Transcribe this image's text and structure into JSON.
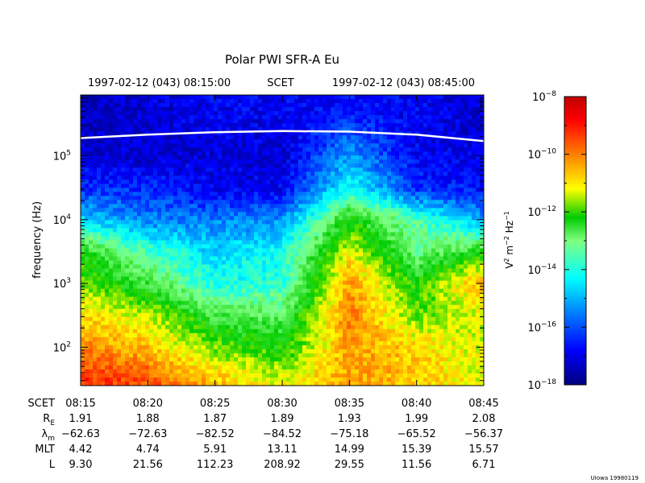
{
  "chart_data": {
    "type": "heatmap",
    "title": "Polar PWI SFR-A Eu",
    "time_axis": {
      "start_label": "1997-02-12 (043) 08:15:00",
      "mid_label": "SCET",
      "end_label": "1997-02-12 (043) 08:45:00",
      "ticks": [
        "08:15",
        "08:20",
        "08:25",
        "08:30",
        "08:35",
        "08:40",
        "08:45"
      ],
      "range_minutes": [
        0,
        30
      ]
    },
    "y_axis": {
      "label": "frequency (Hz)",
      "scale": "log",
      "range_hz": [
        25,
        900000
      ],
      "ticks": [
        {
          "base": "10",
          "exp": "2",
          "value": 100
        },
        {
          "base": "10",
          "exp": "3",
          "value": 1000
        },
        {
          "base": "10",
          "exp": "4",
          "value": 10000
        },
        {
          "base": "10",
          "exp": "5",
          "value": 100000
        }
      ]
    },
    "colorbar": {
      "label_parts": [
        "V",
        "2",
        " m",
        "−2",
        " Hz",
        "−1"
      ],
      "scale": "log",
      "range": [
        1e-18,
        1e-08
      ],
      "ticks": [
        {
          "base": "10",
          "exp": "−8",
          "value": -8
        },
        {
          "base": "10",
          "exp": "−10",
          "value": -10
        },
        {
          "base": "10",
          "exp": "−12",
          "value": -12
        },
        {
          "base": "10",
          "exp": "−14",
          "value": -14
        },
        {
          "base": "10",
          "exp": "−16",
          "value": -16
        },
        {
          "base": "10",
          "exp": "−18",
          "value": -18
        }
      ],
      "colors": [
        "#00007f",
        "#0000ff",
        "#007fff",
        "#00ffff",
        "#7fff7f",
        "#00cc00",
        "#ffff00",
        "#ff7f00",
        "#ff0000",
        "#7f0000"
      ]
    },
    "white_trace_hz": [
      [
        0,
        190000
      ],
      [
        5,
        215000
      ],
      [
        10,
        235000
      ],
      [
        15,
        245000
      ],
      [
        20,
        240000
      ],
      [
        25,
        215000
      ],
      [
        30,
        170000
      ]
    ],
    "spectral_density_log10": {
      "times_min": [
        0,
        5,
        10,
        15,
        20,
        25,
        30
      ],
      "freqs_hz": [
        30,
        100,
        300,
        1000,
        3000,
        10000,
        30000,
        100000,
        500000
      ],
      "values": [
        [
          -9.5,
          -9.8,
          -10.8,
          -11.5,
          -10.5,
          -10.8,
          -11.5
        ],
        [
          -10.3,
          -10.8,
          -12.0,
          -12.5,
          -10.5,
          -11.0,
          -11.5
        ],
        [
          -11.0,
          -11.5,
          -13.0,
          -13.2,
          -10.2,
          -12.0,
          -11.5
        ],
        [
          -12.0,
          -13.0,
          -14.5,
          -14.3,
          -10.5,
          -12.5,
          -10.6
        ],
        [
          -12.5,
          -14.0,
          -15.0,
          -14.5,
          -11.3,
          -13.5,
          -12.5
        ],
        [
          -15.0,
          -15.8,
          -15.8,
          -15.6,
          -12.5,
          -14.0,
          -15.5
        ],
        [
          -16.5,
          -16.5,
          -17.0,
          -17.0,
          -14.5,
          -16.5,
          -16.8
        ],
        [
          -17.2,
          -17.3,
          -17.2,
          -17.3,
          -15.5,
          -17.0,
          -17.2
        ],
        [
          -17.5,
          -17.2,
          -17.0,
          -17.0,
          -16.8,
          -17.0,
          -17.3
        ]
      ]
    },
    "ephemeris": {
      "rows": [
        {
          "label": "SCET",
          "sub": "",
          "values": [
            "08:15",
            "08:20",
            "08:25",
            "08:30",
            "08:35",
            "08:40",
            "08:45"
          ]
        },
        {
          "label": "R",
          "sub": "E",
          "values": [
            "1.91",
            "1.88",
            "1.87",
            "1.89",
            "1.93",
            "1.99",
            "2.08"
          ]
        },
        {
          "label": "λ",
          "sub": "m",
          "values": [
            "−62.63",
            "−72.63",
            "−82.52",
            "−84.52",
            "−75.18",
            "−65.52",
            "−56.37"
          ]
        },
        {
          "label": "MLT",
          "sub": "",
          "values": [
            "4.42",
            "4.74",
            "5.91",
            "13.11",
            "14.99",
            "15.39",
            "15.57"
          ]
        },
        {
          "label": "L",
          "sub": "",
          "values": [
            "9.30",
            "21.56",
            "112.23",
            "208.92",
            "29.55",
            "11.56",
            "6.71"
          ]
        }
      ]
    },
    "footer_note": "UIowa 19980119"
  }
}
